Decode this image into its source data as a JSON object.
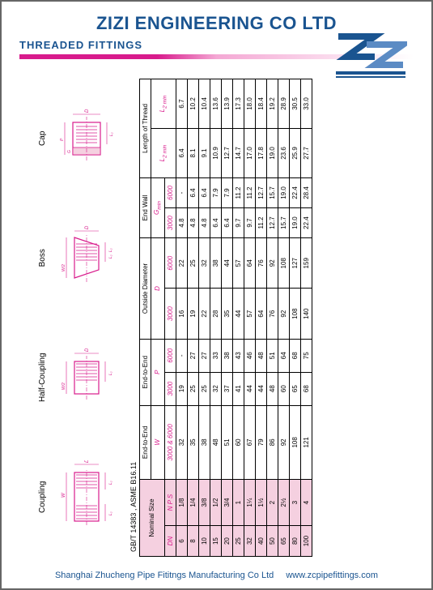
{
  "header": {
    "company": "ZIZI ENGINEERING CO LTD",
    "subtitle": "THREADED FITTINGS"
  },
  "diagrams": {
    "coupling": "Coupling",
    "half_coupling": "Half-Coupling",
    "boss": "Boss",
    "cap": "Cap"
  },
  "standard": "GB/T 14383 , ASME B16.11",
  "table": {
    "head": {
      "nominal_size": "Nominal Size",
      "end_to_end_w": "End-to-End",
      "end_to_end_p": "End-to-End",
      "outside_diameter": "Outside Diameter",
      "end_wall": "End Wall",
      "length_thread": "Length of Thread",
      "dn": "DN",
      "nps": "N P S",
      "w": "W",
      "p": "P",
      "d": "D",
      "g": "G",
      "l2": "L",
      "l2sub": "2 min",
      "l2b": "L",
      "l2bsub": "2 min",
      "c3000_6000": "3000 & 6000",
      "c3000": "3000",
      "c6000": "6000"
    },
    "rows": [
      {
        "dn": "6",
        "nps": "1/8",
        "w": "32",
        "p3": "19",
        "p6": "-",
        "d3": "16",
        "d6": "22",
        "g3": "4.8",
        "g6": "-",
        "l2a": "6.4",
        "l2b": "6.7"
      },
      {
        "dn": "8",
        "nps": "1/4",
        "w": "35",
        "p3": "25",
        "p6": "27",
        "d3": "19",
        "d6": "25",
        "g3": "4.8",
        "g6": "6.4",
        "l2a": "8.1",
        "l2b": "10.2"
      },
      {
        "dn": "10",
        "nps": "3/8",
        "w": "38",
        "p3": "25",
        "p6": "27",
        "d3": "22",
        "d6": "32",
        "g3": "4.8",
        "g6": "6.4",
        "l2a": "9.1",
        "l2b": "10.4"
      },
      {
        "dn": "15",
        "nps": "1/2",
        "w": "48",
        "p3": "32",
        "p6": "33",
        "d3": "28",
        "d6": "38",
        "g3": "6.4",
        "g6": "7.9",
        "l2a": "10.9",
        "l2b": "13.6"
      },
      {
        "dn": "20",
        "nps": "3/4",
        "w": "51",
        "p3": "37",
        "p6": "38",
        "d3": "35",
        "d6": "44",
        "g3": "6.4",
        "g6": "7.9",
        "l2a": "12.7",
        "l2b": "13.9"
      },
      {
        "dn": "25",
        "nps": "1",
        "w": "60",
        "p3": "41",
        "p6": "43",
        "d3": "44",
        "d6": "57",
        "g3": "9.7",
        "g6": "11.2",
        "l2a": "14.7",
        "l2b": "17.3"
      },
      {
        "dn": "32",
        "nps": "1¼",
        "w": "67",
        "p3": "44",
        "p6": "46",
        "d3": "57",
        "d6": "64",
        "g3": "9.7",
        "g6": "11.2",
        "l2a": "17.0",
        "l2b": "18.0"
      },
      {
        "dn": "40",
        "nps": "1½",
        "w": "79",
        "p3": "44",
        "p6": "48",
        "d3": "64",
        "d6": "76",
        "g3": "11.2",
        "g6": "12.7",
        "l2a": "17.8",
        "l2b": "18.4"
      },
      {
        "dn": "50",
        "nps": "2",
        "w": "86",
        "p3": "48",
        "p6": "51",
        "d3": "76",
        "d6": "92",
        "g3": "12.7",
        "g6": "15.7",
        "l2a": "19.0",
        "l2b": "19.2"
      },
      {
        "dn": "65",
        "nps": "2½",
        "w": "92",
        "p3": "60",
        "p6": "64",
        "d3": "92",
        "d6": "108",
        "g3": "15.7",
        "g6": "19.0",
        "l2a": "23.6",
        "l2b": "28.9"
      },
      {
        "dn": "80",
        "nps": "3",
        "w": "108",
        "p3": "65",
        "p6": "68",
        "d3": "108",
        "d6": "127",
        "g3": "19.0",
        "g6": "22.4",
        "l2a": "25.9",
        "l2b": "30.5"
      },
      {
        "dn": "100",
        "nps": "4",
        "w": "121",
        "p3": "68",
        "p6": "75",
        "d3": "140",
        "d6": "159",
        "g3": "22.4",
        "g6": "28.4",
        "l2a": "27.7",
        "l2b": "33.0"
      }
    ]
  },
  "footer": {
    "text": "Shanghai Zhucheng Pipe Fititngs Manufacturing Co Ltd",
    "url": "www.zcpipefittings.com"
  }
}
